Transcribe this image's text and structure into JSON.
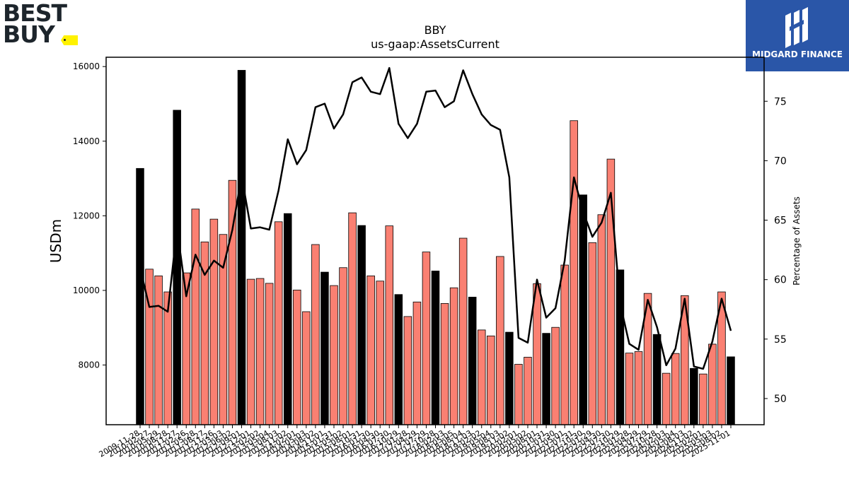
{
  "logos": {
    "left_line1": "BEST",
    "left_line2": "BUY",
    "right_text": "MIDGARD FINANCE"
  },
  "colors": {
    "bar_normal": "#fa8072",
    "bar_highlight": "#000000",
    "line": "#000000",
    "brand_blue": "#2a56a8",
    "brand_yellow": "#fff200"
  },
  "chart_data": {
    "type": "bar",
    "title": "BBY",
    "subtitle": "us-gaap:AssetsCurrent",
    "ylabel": "USDm",
    "y2label": "Percentage of Assets",
    "ylim": [
      6400,
      16250
    ],
    "y2lim": [
      47.8,
      78.7
    ],
    "yticks": [
      8000,
      10000,
      12000,
      14000,
      16000
    ],
    "y2ticks": [
      50,
      55,
      60,
      65,
      70,
      75
    ],
    "legend": "none",
    "grid": false,
    "x_tick_labels": [
      "2009-11-28",
      "2010-02-27",
      "2010-05-29",
      "2010-08-28",
      "2010-11-27",
      "2011-02-26",
      "2011-05-28",
      "2011-08-27",
      "2011-11-26",
      "2012-03-03",
      "2012-06-02",
      "2012-09-01",
      "2012-12-01",
      "2013-02-02",
      "2013-05-04",
      "2013-08-03",
      "2013-11-02",
      "2014-02-01",
      "2014-05-03",
      "2014-08-02",
      "2014-11-01",
      "2015-01-31",
      "2015-05-02",
      "2015-08-01",
      "2015-10-31",
      "2016-01-30",
      "2016-04-30",
      "2016-07-30",
      "2016-10-29",
      "2017-01-28",
      "2017-04-29",
      "2017-07-29",
      "2017-10-28",
      "2018-02-03",
      "2018-05-05",
      "2018-08-04",
      "2018-11-03",
      "2019-02-02",
      "2019-05-04",
      "2019-08-03",
      "2019-11-02",
      "2020-02-01",
      "2020-05-02",
      "2020-08-01",
      "2020-10-31",
      "2021-01-30",
      "2021-05-01",
      "2021-07-31",
      "2021-10-30",
      "2022-01-29",
      "2022-04-30",
      "2022-07-30",
      "2022-10-29",
      "2023-01-28",
      "2023-04-29",
      "2023-07-29",
      "2023-10-28",
      "2024-02-03",
      "2024-05-04",
      "2024-08-03",
      "2024-11-02",
      "2025-02-01",
      "2025-05-03",
      "2025-08-02",
      "2025-11-01"
    ],
    "series": [
      {
        "kind": "bar",
        "values": [
          13270,
          10570,
          10390,
          9960,
          14830,
          10470,
          12180,
          11300,
          11910,
          11500,
          12950,
          15900,
          10300,
          10320,
          10190,
          11840,
          12060,
          10010,
          9430,
          11230,
          10490,
          10130,
          10610,
          12080,
          11740,
          10390,
          10250,
          11730,
          9890,
          9300,
          9690,
          11030,
          10520,
          9650,
          10070,
          11400,
          9820,
          8940,
          8780,
          10910,
          8880,
          8020,
          8210,
          10180,
          8850,
          9010,
          10680,
          14550,
          12560,
          11280,
          12030,
          13520,
          10550,
          8320,
          8360,
          9920,
          8820,
          7780,
          8310,
          9860,
          7910,
          7760,
          8560,
          9960,
          8220
        ],
        "highlight": [
          true,
          false,
          false,
          false,
          true,
          false,
          false,
          false,
          false,
          false,
          false,
          true,
          false,
          false,
          false,
          false,
          true,
          false,
          false,
          false,
          true,
          false,
          false,
          false,
          true,
          false,
          false,
          false,
          true,
          false,
          false,
          false,
          true,
          false,
          false,
          false,
          true,
          false,
          false,
          false,
          true,
          false,
          false,
          false,
          true,
          false,
          false,
          false,
          true,
          false,
          false,
          false,
          true,
          false,
          false,
          false,
          true,
          false,
          false,
          false,
          true,
          false,
          false,
          false,
          true
        ]
      },
      {
        "kind": "line",
        "axis": "right",
        "values": [
          61.0,
          57.7,
          57.8,
          57.3,
          64.3,
          58.6,
          62.1,
          60.4,
          61.6,
          61.0,
          64.2,
          68.7,
          64.3,
          64.4,
          64.2,
          67.5,
          71.8,
          69.7,
          70.9,
          74.5,
          74.8,
          72.7,
          73.9,
          76.6,
          77.0,
          75.8,
          75.6,
          77.8,
          73.1,
          71.9,
          73.1,
          75.8,
          75.9,
          74.5,
          75.0,
          77.6,
          75.6,
          73.9,
          73.0,
          72.6,
          68.6,
          55.1,
          54.7,
          60.0,
          56.8,
          57.6,
          61.6,
          68.6,
          65.7,
          63.6,
          64.8,
          67.3,
          58.0,
          54.6,
          54.1,
          58.3,
          56.0,
          52.8,
          54.2,
          58.4,
          52.7,
          52.5,
          54.8,
          58.4,
          55.7
        ]
      }
    ]
  }
}
